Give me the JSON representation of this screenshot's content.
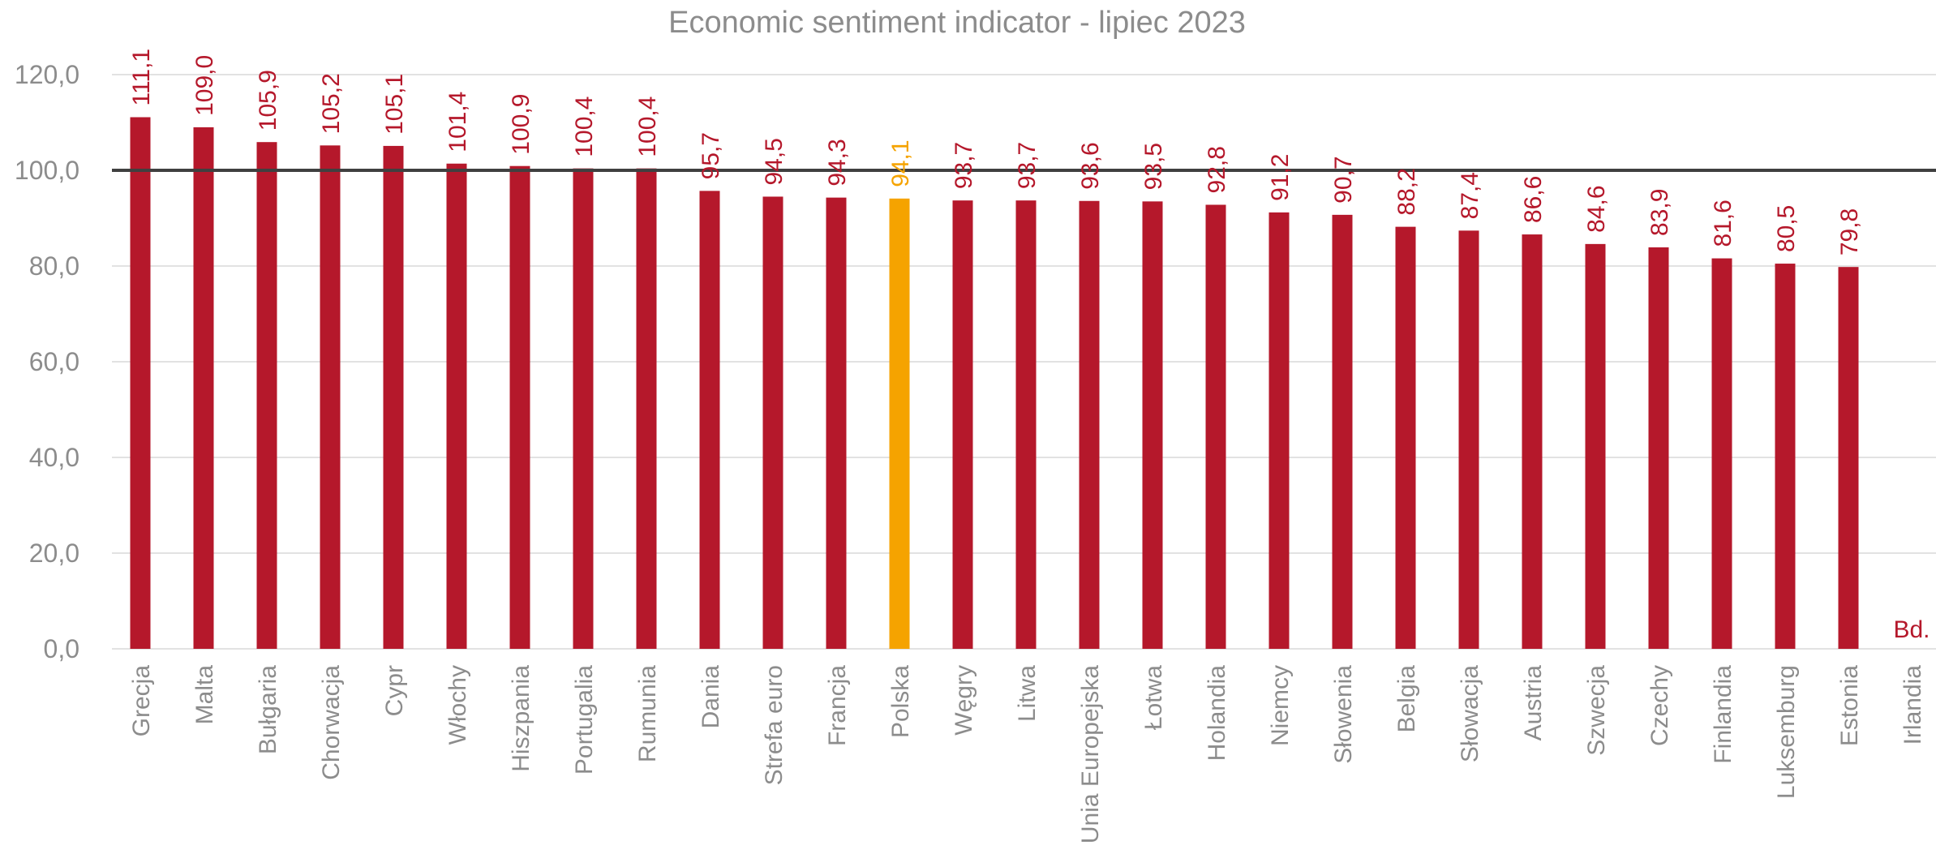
{
  "chart_data": {
    "type": "bar",
    "title": "Economic sentiment indicator - lipiec 2023",
    "xlabel": "",
    "ylabel": "",
    "ylim": [
      0,
      120
    ],
    "yticks": [
      "0,0",
      "20,0",
      "40,0",
      "60,0",
      "80,0",
      "100,0",
      "120,0"
    ],
    "grid": true,
    "reference_line": 100,
    "categories": [
      "Grecja",
      "Malta",
      "Bułgaria",
      "Chorwacja",
      "Cypr",
      "Włochy",
      "Hiszpania",
      "Portugalia",
      "Rumunia",
      "Dania",
      "Strefa euro",
      "Francja",
      "Polska",
      "Węgry",
      "Litwa",
      "Unia Europejska",
      "Łotwa",
      "Holandia",
      "Niemcy",
      "Słowenia",
      "Belgia",
      "Słowacja",
      "Austria",
      "Szwecja",
      "Czechy",
      "Finlandia",
      "Luksemburg",
      "Estonia",
      "Irlandia"
    ],
    "values": [
      111.1,
      109.0,
      105.9,
      105.2,
      105.1,
      101.4,
      100.9,
      100.4,
      100.4,
      95.7,
      94.5,
      94.3,
      94.1,
      93.7,
      93.7,
      93.6,
      93.5,
      92.8,
      91.2,
      90.7,
      88.2,
      87.4,
      86.6,
      84.6,
      83.9,
      81.6,
      80.5,
      79.8,
      null
    ],
    "data_labels": [
      "111,1",
      "109,0",
      "105,9",
      "105,2",
      "105,1",
      "101,4",
      "100,9",
      "100,4",
      "100,4",
      "95,7",
      "94,5",
      "94,3",
      "94,1",
      "93,7",
      "93,7",
      "93,6",
      "93,5",
      "92,8",
      "91,2",
      "90,7",
      "88,2",
      "87,4",
      "86,6",
      "84,6",
      "83,9",
      "81,6",
      "80,5",
      "79,8",
      "Bd."
    ],
    "highlight_category": "Polska",
    "colors": {
      "bar": "#b5182b",
      "highlight": "#f5a300",
      "reference_line": "#404040",
      "grid": "#d9d9d9",
      "text": "#8c8c8c"
    }
  }
}
